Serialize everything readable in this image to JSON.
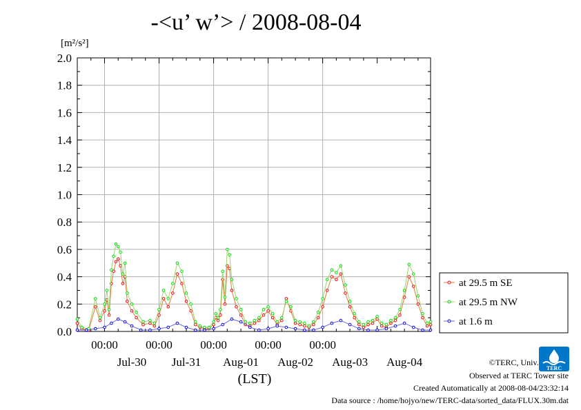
{
  "chart_data": {
    "type": "line",
    "title": "-<u’ w’> / 2008-08-04",
    "ylabel_unit": "[m²/s²]",
    "xlabel": "(LST)",
    "ylim": [
      0,
      2.0
    ],
    "yticks": [
      "0.0",
      "0.2",
      "0.4",
      "0.6",
      "0.8",
      "1.0",
      "1.2",
      "1.4",
      "1.6",
      "1.8",
      "2.0"
    ],
    "time_ticks": [
      "00:00",
      "00:00",
      "00:00",
      "00:00",
      "00:00"
    ],
    "date_ticks": [
      "Jul-30",
      "Jul-31",
      "Aug-01",
      "Aug-02",
      "Aug-03",
      "Aug-04"
    ],
    "grid": true,
    "legend_position": "right",
    "x_start": "2008-07-29T12:00",
    "x_end": "2008-08-04T23:30",
    "series": [
      {
        "name": "at 29.5 m SE",
        "color": "#ff0000",
        "times": [
          "07-29 12:00",
          "07-29 14:00",
          "07-29 17:00",
          "07-29 20:00",
          "07-29 22:00",
          "07-30 00:00",
          "07-30 01:00",
          "07-30 02:00",
          "07-30 03:00",
          "07-30 04:00",
          "07-30 05:00",
          "07-30 06:00",
          "07-30 07:00",
          "07-30 08:00",
          "07-30 09:00",
          "07-30 10:00",
          "07-30 12:00",
          "07-30 14:00",
          "07-30 17:00",
          "07-30 20:00",
          "07-30 22:00",
          "07-31 00:00",
          "07-31 02:00",
          "07-31 04:00",
          "07-31 06:00",
          "07-31 08:00",
          "07-31 10:00",
          "07-31 12:00",
          "07-31 14:00",
          "07-31 16:00",
          "07-31 18:00",
          "07-31 20:00",
          "07-31 22:00",
          "08-01 00:00",
          "08-01 01:00",
          "08-01 02:00",
          "08-01 03:00",
          "08-01 04:00",
          "08-01 05:00",
          "08-01 06:00",
          "08-01 07:00",
          "08-01 08:00",
          "08-01 10:00",
          "08-01 12:00",
          "08-01 14:00",
          "08-01 16:00",
          "08-01 18:00",
          "08-01 20:00",
          "08-01 22:00",
          "08-02 00:00",
          "08-02 02:00",
          "08-02 04:00",
          "08-02 06:00",
          "08-02 08:00",
          "08-02 10:00",
          "08-02 12:00",
          "08-02 14:00",
          "08-02 16:00",
          "08-02 18:00",
          "08-02 20:00",
          "08-02 22:00",
          "08-03 00:00",
          "08-03 02:00",
          "08-03 04:00",
          "08-03 06:00",
          "08-03 08:00",
          "08-03 10:00",
          "08-03 12:00",
          "08-03 14:00",
          "08-03 16:00",
          "08-03 18:00",
          "08-03 20:00",
          "08-03 22:00",
          "08-04 00:00",
          "08-04 02:00",
          "08-04 04:00",
          "08-04 06:00",
          "08-04 08:00",
          "08-04 10:00",
          "08-04 12:00",
          "08-04 14:00",
          "08-04 16:00",
          "08-04 18:00",
          "08-04 20:00",
          "08-04 22:00",
          "08-04 23:30"
        ],
        "values": [
          0.06,
          0.02,
          0.01,
          0.18,
          0.08,
          0.15,
          0.23,
          0.12,
          0.35,
          0.44,
          0.51,
          0.53,
          0.48,
          0.35,
          0.4,
          0.22,
          0.15,
          0.1,
          0.05,
          0.06,
          0.04,
          0.12,
          0.24,
          0.18,
          0.28,
          0.42,
          0.35,
          0.22,
          0.15,
          0.05,
          0.03,
          0.02,
          0.02,
          0.05,
          0.1,
          0.08,
          0.12,
          0.38,
          0.2,
          0.48,
          0.46,
          0.3,
          0.18,
          0.12,
          0.05,
          0.04,
          0.06,
          0.08,
          0.12,
          0.15,
          0.1,
          0.05,
          0.08,
          0.24,
          0.15,
          0.06,
          0.05,
          0.04,
          0.03,
          0.05,
          0.1,
          0.18,
          0.3,
          0.4,
          0.38,
          0.42,
          0.28,
          0.18,
          0.1,
          0.05,
          0.03,
          0.05,
          0.06,
          0.09,
          0.04,
          0.03,
          0.06,
          0.08,
          0.12,
          0.25,
          0.4,
          0.33,
          0.2,
          0.1,
          0.04,
          0.05
        ]
      },
      {
        "name": "at 29.5 m NW",
        "color": "#00e000",
        "times": [
          "07-29 12:00",
          "07-29 14:00",
          "07-29 17:00",
          "07-29 20:00",
          "07-29 22:00",
          "07-30 00:00",
          "07-30 01:00",
          "07-30 02:00",
          "07-30 03:00",
          "07-30 04:00",
          "07-30 05:00",
          "07-30 06:00",
          "07-30 07:00",
          "07-30 08:00",
          "07-30 09:00",
          "07-30 10:00",
          "07-30 12:00",
          "07-30 14:00",
          "07-30 17:00",
          "07-30 20:00",
          "07-30 22:00",
          "07-31 00:00",
          "07-31 02:00",
          "07-31 04:00",
          "07-31 06:00",
          "07-31 08:00",
          "07-31 10:00",
          "07-31 12:00",
          "07-31 14:00",
          "07-31 16:00",
          "07-31 18:00",
          "07-31 20:00",
          "07-31 22:00",
          "08-01 00:00",
          "08-01 01:00",
          "08-01 02:00",
          "08-01 03:00",
          "08-01 04:00",
          "08-01 05:00",
          "08-01 06:00",
          "08-01 07:00",
          "08-01 08:00",
          "08-01 10:00",
          "08-01 12:00",
          "08-01 14:00",
          "08-01 16:00",
          "08-01 18:00",
          "08-01 20:00",
          "08-01 22:00",
          "08-02 00:00",
          "08-02 02:00",
          "08-02 04:00",
          "08-02 06:00",
          "08-02 08:00",
          "08-02 10:00",
          "08-02 12:00",
          "08-02 14:00",
          "08-02 16:00",
          "08-02 18:00",
          "08-02 20:00",
          "08-02 22:00",
          "08-03 00:00",
          "08-03 02:00",
          "08-03 04:00",
          "08-03 06:00",
          "08-03 08:00",
          "08-03 10:00",
          "08-03 12:00",
          "08-03 14:00",
          "08-03 16:00",
          "08-03 18:00",
          "08-03 20:00",
          "08-03 22:00",
          "08-04 00:00",
          "08-04 02:00",
          "08-04 04:00",
          "08-04 06:00",
          "08-04 08:00",
          "08-04 10:00",
          "08-04 12:00",
          "08-04 14:00",
          "08-04 16:00",
          "08-04 18:00",
          "08-04 20:00",
          "08-04 22:00",
          "08-04 23:30"
        ],
        "values": [
          0.09,
          0.03,
          0.02,
          0.24,
          0.1,
          0.2,
          0.3,
          0.16,
          0.45,
          0.55,
          0.64,
          0.62,
          0.58,
          0.42,
          0.5,
          0.28,
          0.2,
          0.14,
          0.07,
          0.08,
          0.06,
          0.16,
          0.3,
          0.24,
          0.35,
          0.5,
          0.44,
          0.28,
          0.2,
          0.07,
          0.04,
          0.03,
          0.03,
          0.07,
          0.13,
          0.1,
          0.16,
          0.44,
          0.25,
          0.6,
          0.56,
          0.38,
          0.24,
          0.16,
          0.07,
          0.06,
          0.08,
          0.1,
          0.16,
          0.18,
          0.13,
          0.07,
          0.1,
          0.22,
          0.18,
          0.08,
          0.07,
          0.06,
          0.04,
          0.07,
          0.14,
          0.24,
          0.38,
          0.45,
          0.43,
          0.48,
          0.34,
          0.22,
          0.13,
          0.07,
          0.05,
          0.07,
          0.08,
          0.11,
          0.06,
          0.05,
          0.08,
          0.1,
          0.16,
          0.3,
          0.49,
          0.42,
          0.26,
          0.13,
          0.06,
          0.07
        ]
      },
      {
        "name": "at 1.6 m",
        "color": "#0000ff",
        "times": [
          "07-29 12:00",
          "07-29 16:00",
          "07-29 20:00",
          "07-30 00:00",
          "07-30 03:00",
          "07-30 06:00",
          "07-30 09:00",
          "07-30 12:00",
          "07-30 16:00",
          "07-30 20:00",
          "07-31 00:00",
          "07-31 04:00",
          "07-31 08:00",
          "07-31 12:00",
          "07-31 16:00",
          "07-31 20:00",
          "08-01 00:00",
          "08-01 04:00",
          "08-01 08:00",
          "08-01 12:00",
          "08-01 16:00",
          "08-01 20:00",
          "08-02 00:00",
          "08-02 04:00",
          "08-02 08:00",
          "08-02 12:00",
          "08-02 16:00",
          "08-02 20:00",
          "08-03 00:00",
          "08-03 04:00",
          "08-03 08:00",
          "08-03 12:00",
          "08-03 16:00",
          "08-03 20:00",
          "08-04 00:00",
          "08-04 04:00",
          "08-04 08:00",
          "08-04 12:00",
          "08-04 16:00",
          "08-04 20:00",
          "08-04 23:30"
        ],
        "values": [
          0.01,
          0.01,
          0.02,
          0.03,
          0.06,
          0.09,
          0.07,
          0.04,
          0.01,
          0.01,
          0.02,
          0.03,
          0.06,
          0.03,
          0.01,
          0.01,
          0.02,
          0.05,
          0.09,
          0.07,
          0.03,
          0.01,
          0.02,
          0.04,
          0.03,
          0.02,
          0.01,
          0.01,
          0.03,
          0.06,
          0.08,
          0.05,
          0.02,
          0.01,
          0.01,
          0.02,
          0.04,
          0.06,
          0.03,
          0.01,
          0.01
        ]
      }
    ]
  },
  "footer": {
    "copyright": "©TERC, Univ. Tsukuba",
    "observed": "Observed at TERC Tower site",
    "created": "Created Automatically at 2008-08-04/23:32:14",
    "source": "Data source : /home/hojyo/new/TERC-data/sorted_data/FLUX.30m.dat"
  },
  "logo": {
    "text": "TERC"
  }
}
